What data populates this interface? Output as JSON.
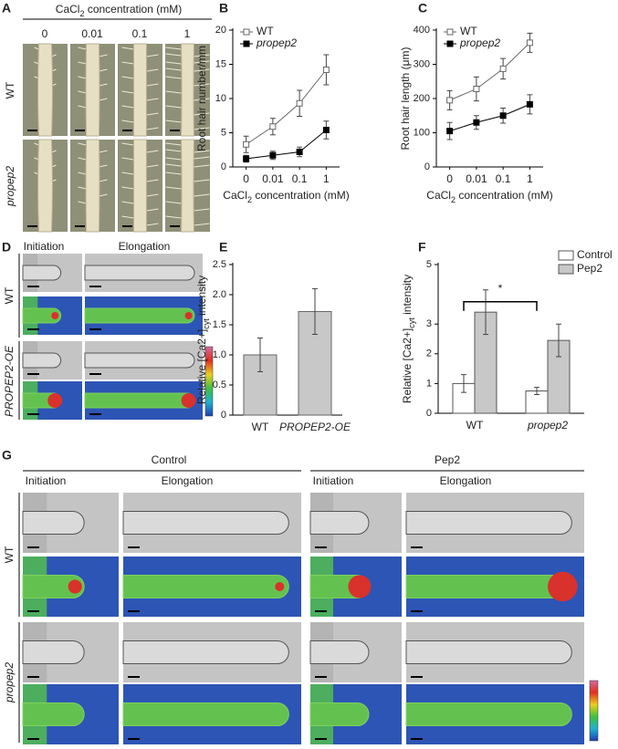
{
  "panel_labels": [
    "A",
    "B",
    "C",
    "D",
    "E",
    "F",
    "G"
  ],
  "panel_a": {
    "title": {
      "main": "CaCl",
      "sub": "2",
      "rest": " concentration (mM)"
    },
    "columns": [
      "0",
      "0.01",
      "0.1",
      "1"
    ],
    "rows": [
      "WT",
      "propep2"
    ]
  },
  "panel_d": {
    "columns": [
      "Initiation",
      "Elongation"
    ],
    "rows": [
      "WT",
      "PROPEP2-OE"
    ]
  },
  "panel_g": {
    "groups": [
      "Control",
      "Pep2"
    ],
    "columns": [
      "Initiation",
      "Elongation",
      "Initiation",
      "Elongation"
    ],
    "rows": [
      "WT",
      "propep2"
    ]
  },
  "chart_data": [
    {
      "type": "line",
      "ylabel": "Root hair number/mm",
      "xlabel": {
        "main": "CaCl",
        "sub": "2",
        "rest": " concentration (mM)"
      },
      "categories": [
        "0",
        "0.01",
        "0.1",
        "1"
      ],
      "ylim": [
        0,
        20
      ],
      "yticks": [
        0,
        5,
        10,
        15,
        20
      ],
      "legend": "upper left",
      "series": [
        {
          "name": "WT",
          "color": "#666666",
          "marker": "open",
          "values": [
            3.3,
            5.9,
            9.3,
            14.2
          ],
          "errors": [
            1.2,
            1.2,
            1.9,
            2.2
          ]
        },
        {
          "name": "propep2",
          "color": "#000000",
          "marker": "filled",
          "values": [
            1.2,
            1.7,
            2.2,
            5.4
          ],
          "errors": [
            0.5,
            0.6,
            0.7,
            1.3
          ]
        }
      ]
    },
    {
      "type": "line",
      "ylabel": "Root hair length (μm)",
      "xlabel": {
        "main": "CaCl",
        "sub": "2",
        "rest": " concentration (mM)"
      },
      "categories": [
        "0",
        "0.01",
        "0.1",
        "1"
      ],
      "ylim": [
        0,
        400
      ],
      "yticks": [
        0,
        100,
        200,
        300,
        400
      ],
      "legend": "upper left",
      "series": [
        {
          "name": "WT",
          "color": "#666666",
          "marker": "open",
          "values": [
            195,
            228,
            287,
            363
          ],
          "errors": [
            28,
            35,
            30,
            28
          ]
        },
        {
          "name": "propep2",
          "color": "#000000",
          "marker": "filled",
          "values": [
            105,
            130,
            150,
            183
          ],
          "errors": [
            25,
            20,
            22,
            28
          ]
        }
      ]
    },
    {
      "type": "bar",
      "ylabel": {
        "main": "Relative [Ca2+]",
        "sub": "cyt",
        "rest": " intensity"
      },
      "categories": [
        "WT",
        "PROPEP2-OE"
      ],
      "values": [
        1.0,
        1.72
      ],
      "errors": [
        0.28,
        0.38
      ],
      "color": "#c8c8c8",
      "ylim": [
        0,
        2.5
      ],
      "yticks": [
        0,
        0.5,
        {
          "value": 1,
          "label": "1.0"
        },
        1.5,
        {
          "value": 2,
          "label": "2.0"
        },
        2.5
      ]
    },
    {
      "type": "grouped_bar",
      "ylabel": {
        "main": "Relative [Ca2+]",
        "sub": "cyt",
        "rest": " intensity"
      },
      "categories": [
        "WT",
        "propep2"
      ],
      "ylim": [
        0,
        5
      ],
      "yticks": [
        0,
        1,
        2,
        3,
        5
      ],
      "legend": "upper right",
      "annotation": "*",
      "series": [
        {
          "name": "Control",
          "color": "#ffffff",
          "values": [
            1.0,
            0.75
          ],
          "errors": [
            0.3,
            0.12
          ]
        },
        {
          "name": "Pep2",
          "color": "#c8c8c8",
          "values": [
            3.4,
            2.45
          ],
          "errors": [
            0.75,
            0.55
          ]
        }
      ]
    }
  ]
}
